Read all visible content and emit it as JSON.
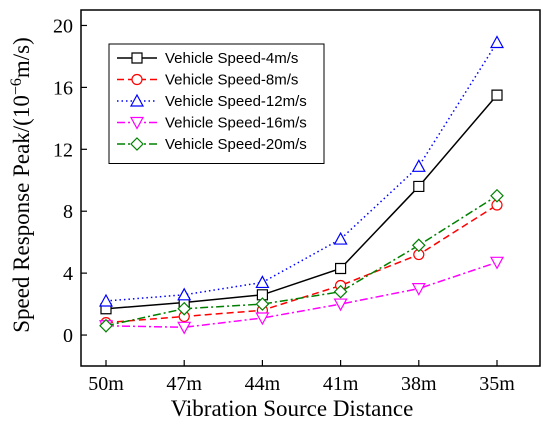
{
  "chart_data": {
    "type": "line",
    "categories": [
      "50m",
      "47m",
      "44m",
      "41m",
      "38m",
      "35m"
    ],
    "series": [
      {
        "name": "Vehicle Speed-4m/s",
        "values": [
          1.7,
          2.1,
          2.6,
          4.3,
          9.6,
          15.5
        ],
        "color": "#000000",
        "dash": "solid",
        "marker": "square"
      },
      {
        "name": "Vehicle Speed-8m/s",
        "values": [
          0.8,
          1.2,
          1.6,
          3.2,
          5.2,
          8.4
        ],
        "color": "#ff0000",
        "dash": "dashed",
        "marker": "circle"
      },
      {
        "name": "Vehicle Speed-12m/s",
        "values": [
          2.2,
          2.6,
          3.4,
          6.2,
          10.9,
          18.9
        ],
        "color": "#0000ff",
        "dash": "dotted",
        "marker": "triangle-up"
      },
      {
        "name": "Vehicle Speed-16m/s",
        "values": [
          0.6,
          0.5,
          1.1,
          2.0,
          3.0,
          4.7
        ],
        "color": "#ff00ff",
        "dash": "dash-dot",
        "marker": "triangle-down"
      },
      {
        "name": "Vehicle Speed-20m/s",
        "values": [
          0.6,
          1.7,
          2.0,
          2.8,
          5.8,
          9.0
        ],
        "color": "#008000",
        "dash": "dash-dot",
        "marker": "diamond"
      }
    ],
    "xlabel": "Vibration Source Distance",
    "ylabel": {
      "prefix": "Speed Response Peak/(10",
      "superscript": "−6",
      "suffix": "m/s)"
    },
    "ylim": [
      -2,
      21
    ],
    "yticks": [
      "0",
      "4",
      "8",
      "12",
      "16",
      "20"
    ],
    "grid": false,
    "legend_position": "top-left"
  }
}
